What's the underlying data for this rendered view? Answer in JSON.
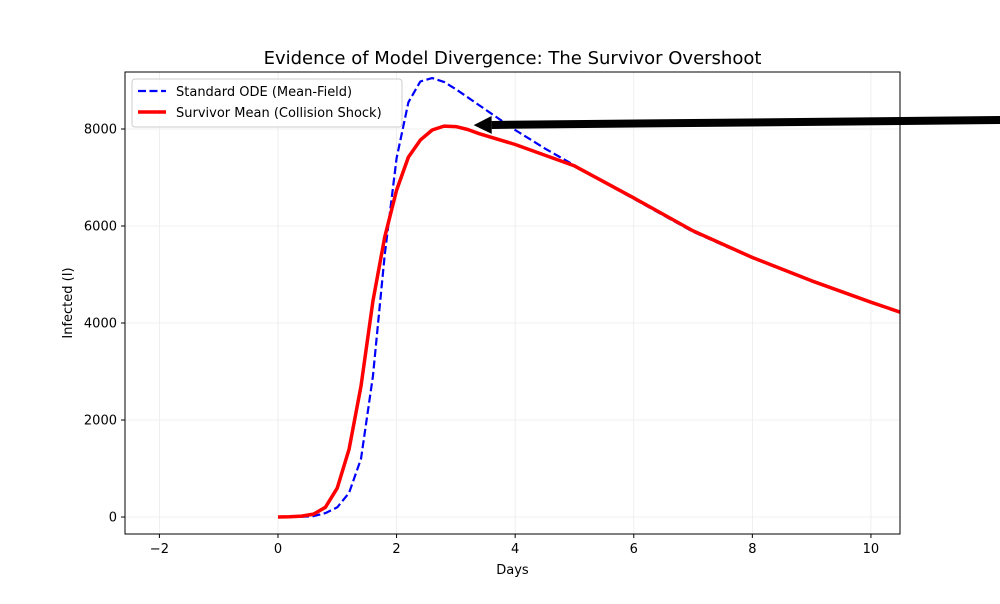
{
  "chart_data": {
    "type": "line",
    "title": "Evidence of Model Divergence: The Survivor Overshoot",
    "xlabel": "Days",
    "ylabel": "Infected (I)",
    "xlim": [
      -2.58,
      10.49
    ],
    "ylim": [
      -350,
      9175
    ],
    "xticks": [
      -2,
      0,
      2,
      4,
      6,
      8,
      10
    ],
    "yticks": [
      0,
      2000,
      4000,
      6000,
      8000
    ],
    "grid": true,
    "legend_position": "top-left",
    "series": [
      {
        "name": "Standard ODE (Mean-Field)",
        "color": "#0000ff",
        "style": "dashed",
        "x": [
          0,
          0.2,
          0.4,
          0.6,
          0.8,
          1.0,
          1.2,
          1.4,
          1.6,
          1.8,
          2.0,
          2.2,
          2.4,
          2.6,
          2.8,
          3.0,
          3.5,
          4.0,
          4.5,
          5.0,
          5.5,
          6.0,
          7.0,
          8.0,
          9.0,
          10.0,
          10.5
        ],
        "y": [
          0,
          2,
          5,
          20,
          80,
          200,
          500,
          1200,
          2900,
          5400,
          7400,
          8550,
          8980,
          9050,
          8970,
          8820,
          8400,
          7980,
          7600,
          7250,
          6900,
          6560,
          5880,
          5340,
          4860,
          4430,
          4220
        ]
      },
      {
        "name": "Survivor Mean (Collision Shock)",
        "color": "#ff0000",
        "style": "solid",
        "x": [
          0,
          0.2,
          0.4,
          0.6,
          0.8,
          1.0,
          1.2,
          1.4,
          1.6,
          1.8,
          2.0,
          2.2,
          2.4,
          2.6,
          2.8,
          3.0,
          3.2,
          3.4,
          4.0,
          5.0,
          6.0,
          7.0,
          8.0,
          9.0,
          10.0,
          10.5
        ],
        "y": [
          0,
          5,
          20,
          60,
          200,
          600,
          1400,
          2700,
          4450,
          5770,
          6740,
          7420,
          7770,
          7980,
          8060,
          8050,
          7990,
          7900,
          7680,
          7240,
          6580,
          5900,
          5350,
          4870,
          4430,
          4220
        ]
      }
    ],
    "annotations": [
      {
        "type": "arrow",
        "color": "#000000",
        "from": [
          12.18,
          8185
        ],
        "to": [
          3.3,
          8080
        ]
      }
    ]
  }
}
